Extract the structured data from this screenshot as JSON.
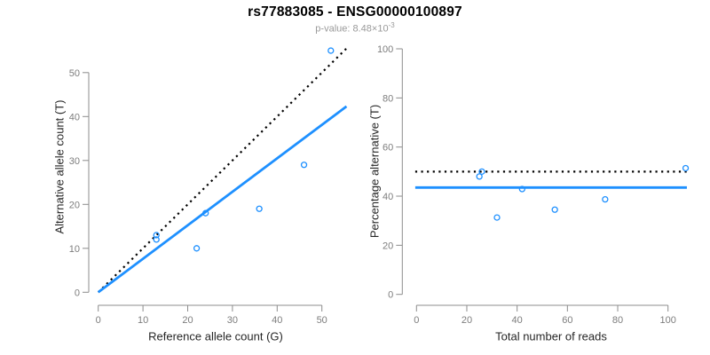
{
  "header": {
    "title": "rs77883085 - ENSG00000100897",
    "p_value_text": "p-value: 8.48×10",
    "p_value_exponent": "-3"
  },
  "colors": {
    "accent_blue": "#1E90FF",
    "dotted_black": "#000000",
    "axis_line": "#8c8c8c",
    "tick_label": "#7d7d7d",
    "axis_title": "#262626",
    "title": "#000000",
    "subtitle": "#9a9a9a"
  },
  "chart_data": [
    {
      "type": "scatter",
      "panel": "allele-counts",
      "xlabel": "Reference allele count (G)",
      "ylabel": "Alternative allele count (T)",
      "xlim": [
        0,
        55.5
      ],
      "ylim": [
        0,
        56
      ],
      "xticks": [
        0,
        10,
        20,
        30,
        40,
        50
      ],
      "yticks": [
        0,
        10,
        20,
        30,
        40,
        50
      ],
      "grid": false,
      "legend": "none",
      "points": [
        [
          13,
          13
        ],
        [
          13,
          12
        ],
        [
          22,
          10
        ],
        [
          24,
          18
        ],
        [
          36,
          19
        ],
        [
          46,
          29
        ],
        [
          52,
          55
        ]
      ],
      "lines": [
        {
          "name": "identity-line",
          "style": "dotted",
          "color": "#000000",
          "x1": 0,
          "y1": 0,
          "x2": 55.5,
          "y2": 55.5
        },
        {
          "name": "fit-line",
          "style": "solid",
          "color": "#1E90FF",
          "x1": 0,
          "y1": 0,
          "x2": 55.5,
          "y2": 42.3
        }
      ]
    },
    {
      "type": "scatter",
      "panel": "percentage-vs-coverage",
      "xlabel": "Total number of reads",
      "ylabel": "Percentage alternative (T)",
      "xlim": [
        0,
        108
      ],
      "ylim": [
        0,
        100
      ],
      "xticks": [
        0,
        20,
        40,
        60,
        80,
        100
      ],
      "yticks": [
        0,
        20,
        40,
        60,
        80,
        100
      ],
      "grid": false,
      "legend": "none",
      "points": [
        [
          26,
          50
        ],
        [
          25,
          48
        ],
        [
          32,
          31.3
        ],
        [
          42,
          42.9
        ],
        [
          55,
          34.5
        ],
        [
          75,
          38.7
        ],
        [
          107,
          51.4
        ]
      ],
      "lines": [
        {
          "name": "expected-50pct-line",
          "style": "dotted",
          "color": "#000000",
          "x1": -0.5,
          "y1": 50,
          "x2": 107.5,
          "y2": 50
        },
        {
          "name": "mean-pct-line",
          "style": "solid",
          "color": "#1E90FF",
          "x1": -0.5,
          "y1": 43.5,
          "x2": 107.5,
          "y2": 43.5
        }
      ]
    }
  ]
}
